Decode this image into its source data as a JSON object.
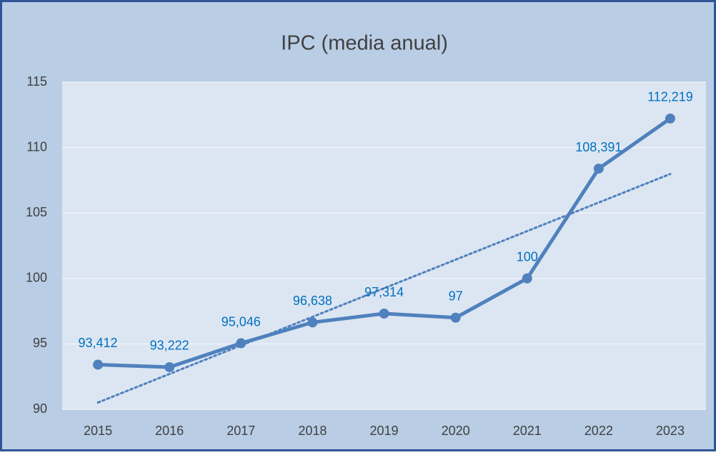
{
  "chart_data": {
    "type": "line",
    "title": "IPC (media anual)",
    "categories": [
      "2015",
      "2016",
      "2017",
      "2018",
      "2019",
      "2020",
      "2021",
      "2022",
      "2023"
    ],
    "series": [
      {
        "name": "IPC",
        "color": "#4f81bd",
        "values": [
          93.412,
          93.222,
          95.046,
          96.638,
          97.314,
          97,
          100,
          108.391,
          112.219
        ],
        "value_labels": [
          "93,412",
          "93,222",
          "95,046",
          "96,638",
          "97,314",
          "97",
          "100",
          "108,391",
          "112,219"
        ]
      }
    ],
    "ylim": [
      90,
      115
    ],
    "yticks": [
      90,
      95,
      100,
      105,
      110,
      115
    ],
    "grid": true,
    "trendline": true
  }
}
